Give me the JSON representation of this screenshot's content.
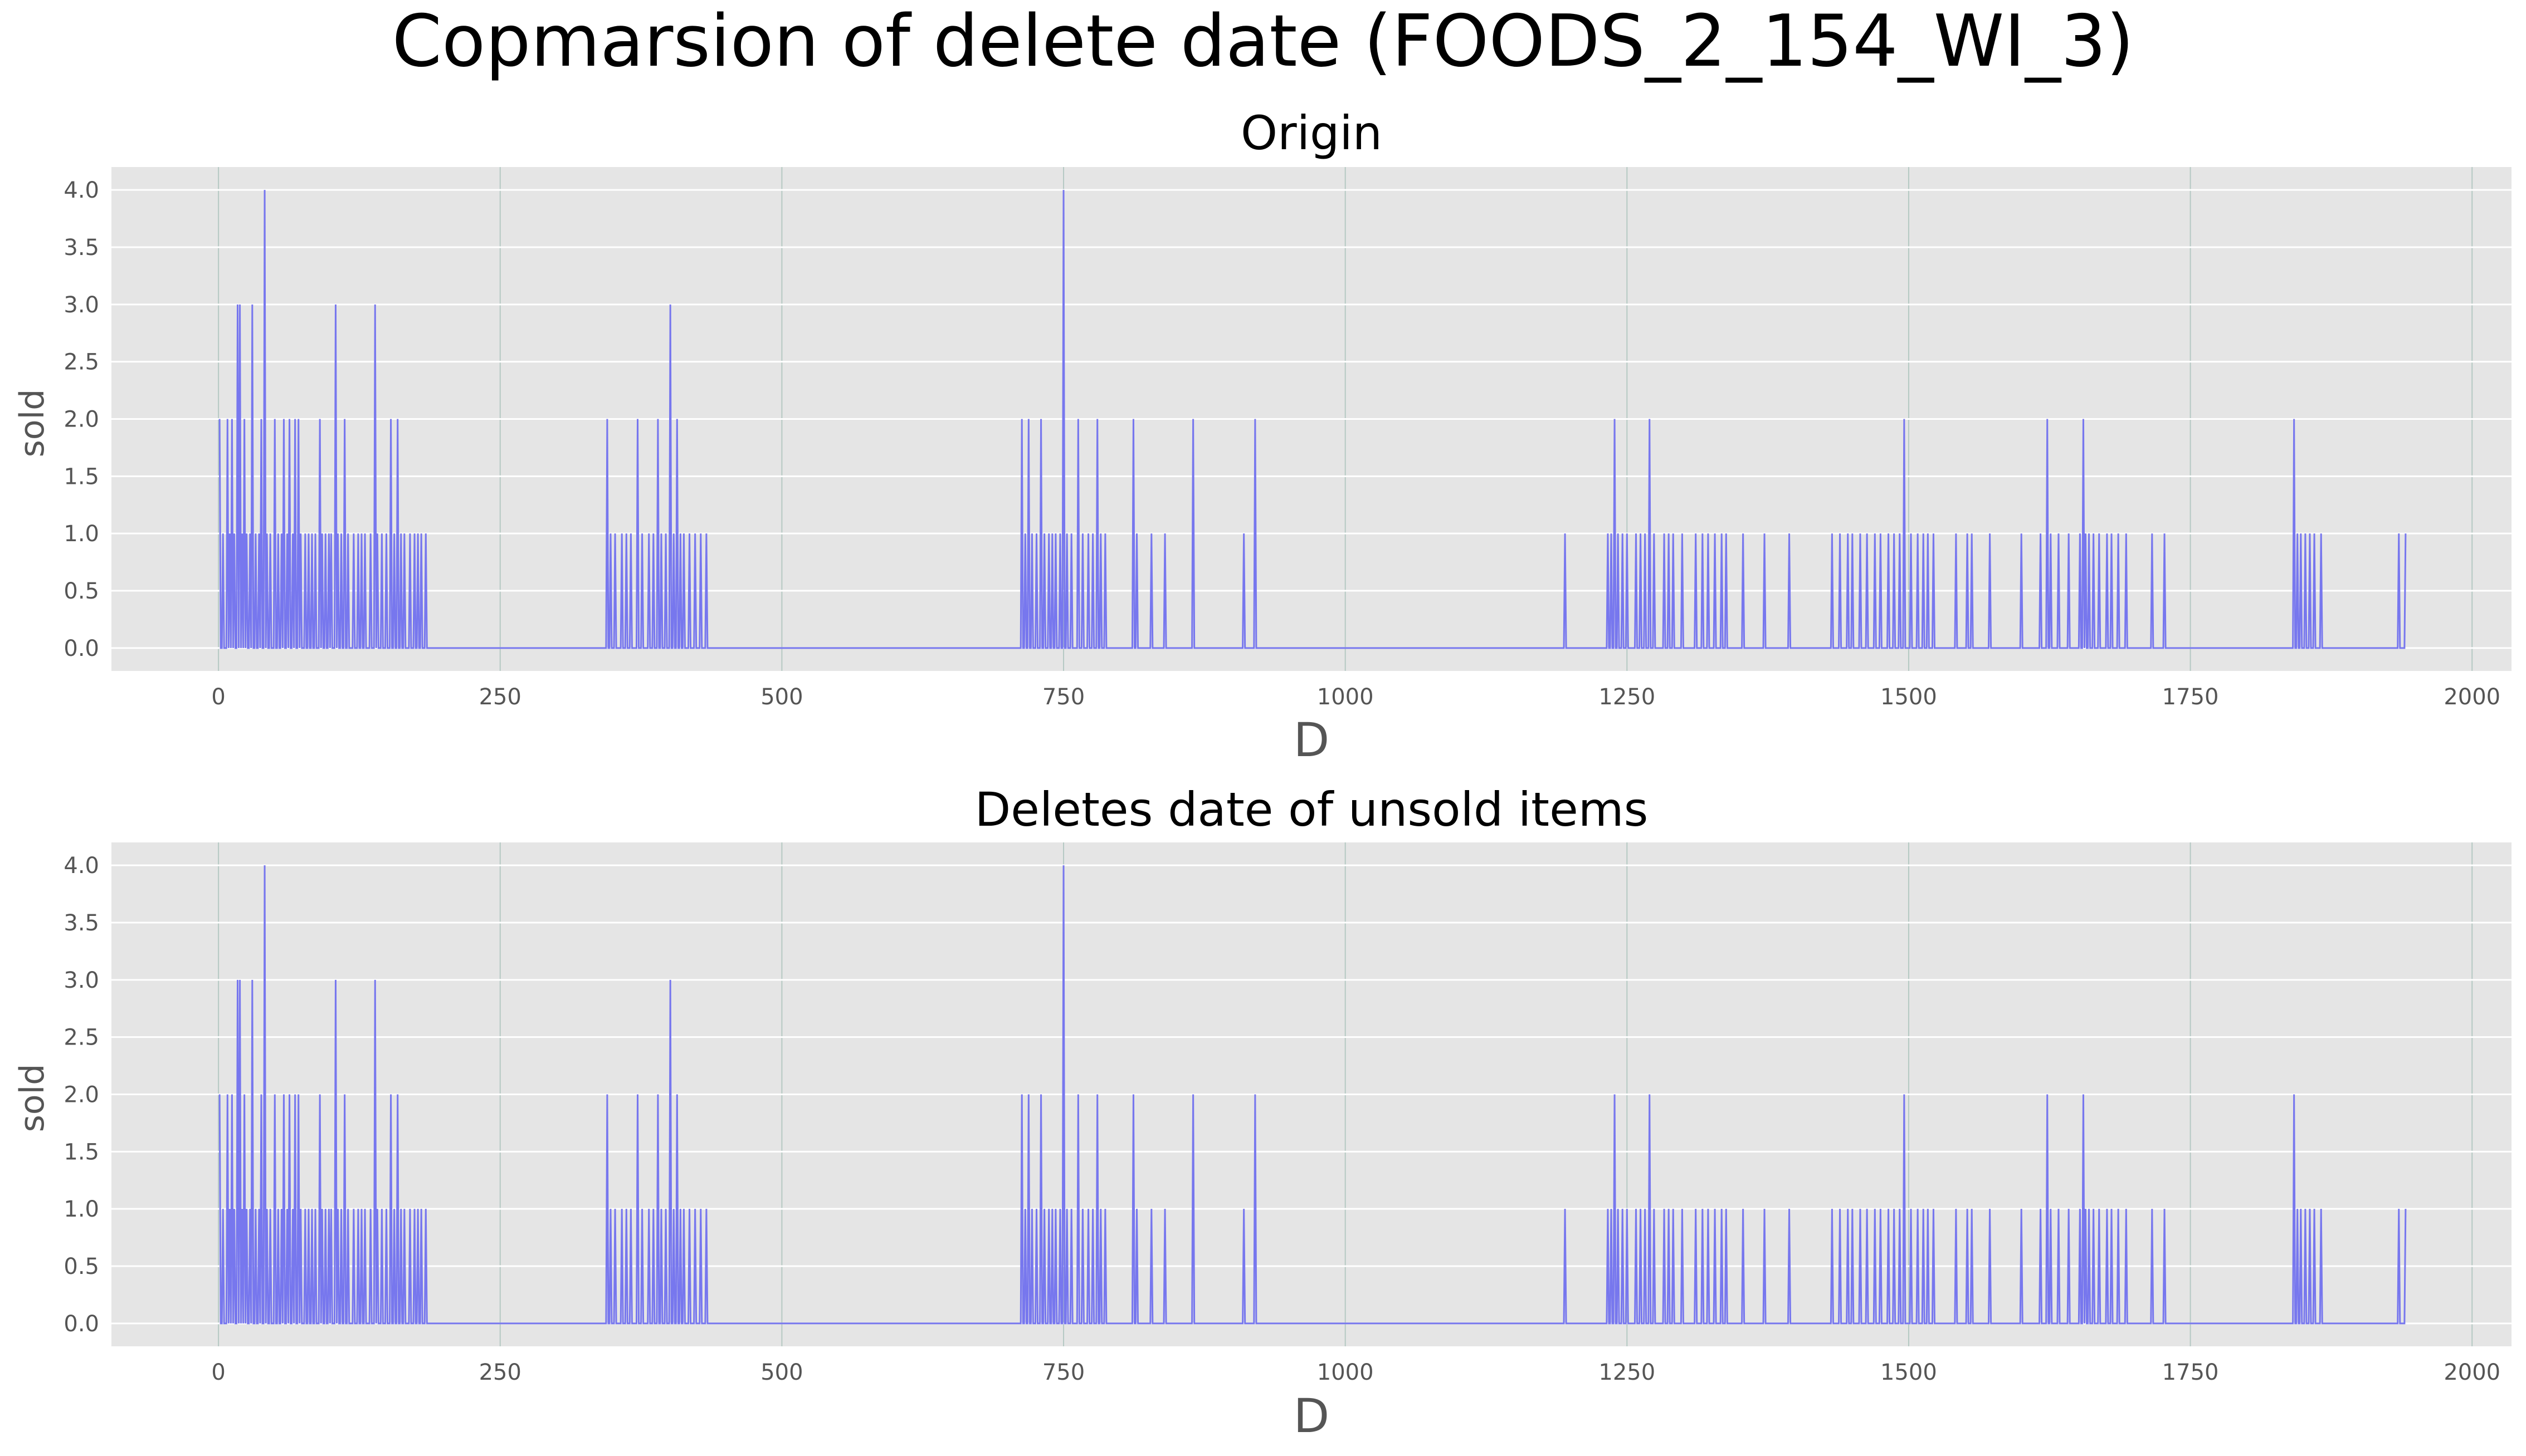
{
  "suptitle": "Copmarsion of delete date (FOODS_2_154_WI_3)",
  "colors": {
    "line": "#7777ee",
    "panel_bg": "#e5e5e5",
    "grid_h": "#ffffff",
    "grid_v": "#b5c9c3",
    "text": "#555555"
  },
  "chart_data": [
    {
      "type": "line",
      "title": "Origin",
      "xlabel": "D",
      "ylabel": "sold",
      "xlim": [
        -95,
        2035
      ],
      "ylim": [
        -0.2,
        4.2
      ],
      "xticks": [
        0,
        250,
        500,
        750,
        1000,
        1250,
        1500,
        1750,
        2000
      ],
      "xtick_labels": [
        "0",
        "250",
        "500",
        "750",
        "1000",
        "1250",
        "1500",
        "1750",
        "2000"
      ],
      "yticks": [
        0,
        0.5,
        1,
        1.5,
        2,
        2.5,
        3,
        3.5,
        4
      ],
      "ytick_labels": [
        "0.0",
        "0.5",
        "1.0",
        "1.5",
        "2.0",
        "2.5",
        "3.0",
        "3.5",
        "4.0"
      ],
      "grid": true,
      "x_start": 1,
      "x_end": 1941,
      "nonzero": [
        [
          1,
          2
        ],
        [
          4,
          1
        ],
        [
          8,
          2
        ],
        [
          10,
          1
        ],
        [
          12,
          2
        ],
        [
          14,
          1
        ],
        [
          17,
          3
        ],
        [
          19,
          3
        ],
        [
          21,
          1
        ],
        [
          23,
          2
        ],
        [
          25,
          1
        ],
        [
          28,
          1
        ],
        [
          30,
          3
        ],
        [
          33,
          1
        ],
        [
          36,
          1
        ],
        [
          38,
          2
        ],
        [
          41,
          4
        ],
        [
          43,
          1
        ],
        [
          46,
          1
        ],
        [
          50,
          2
        ],
        [
          53,
          1
        ],
        [
          56,
          1
        ],
        [
          58,
          2
        ],
        [
          61,
          1
        ],
        [
          63,
          2
        ],
        [
          66,
          1
        ],
        [
          68,
          2
        ],
        [
          71,
          2
        ],
        [
          73,
          1
        ],
        [
          77,
          1
        ],
        [
          80,
          1
        ],
        [
          83,
          1
        ],
        [
          86,
          1
        ],
        [
          90,
          2
        ],
        [
          92,
          1
        ],
        [
          95,
          1
        ],
        [
          98,
          1
        ],
        [
          100,
          1
        ],
        [
          104,
          3
        ],
        [
          106,
          1
        ],
        [
          109,
          1
        ],
        [
          112,
          2
        ],
        [
          115,
          1
        ],
        [
          120,
          1
        ],
        [
          124,
          1
        ],
        [
          127,
          1
        ],
        [
          130,
          1
        ],
        [
          135,
          1
        ],
        [
          139,
          3
        ],
        [
          141,
          1
        ],
        [
          145,
          1
        ],
        [
          149,
          1
        ],
        [
          153,
          2
        ],
        [
          156,
          1
        ],
        [
          159,
          2
        ],
        [
          162,
          1
        ],
        [
          165,
          1
        ],
        [
          170,
          1
        ],
        [
          174,
          1
        ],
        [
          177,
          1
        ],
        [
          180,
          1
        ],
        [
          184,
          1
        ],
        [
          345,
          2
        ],
        [
          348,
          1
        ],
        [
          352,
          1
        ],
        [
          358,
          1
        ],
        [
          362,
          1
        ],
        [
          366,
          1
        ],
        [
          372,
          2
        ],
        [
          376,
          1
        ],
        [
          382,
          1
        ],
        [
          386,
          1
        ],
        [
          390,
          2
        ],
        [
          393,
          1
        ],
        [
          397,
          1
        ],
        [
          401,
          3
        ],
        [
          404,
          1
        ],
        [
          407,
          2
        ],
        [
          410,
          1
        ],
        [
          413,
          1
        ],
        [
          418,
          1
        ],
        [
          423,
          1
        ],
        [
          428,
          1
        ],
        [
          433,
          1
        ],
        [
          713,
          2
        ],
        [
          716,
          1
        ],
        [
          719,
          2
        ],
        [
          722,
          1
        ],
        [
          726,
          1
        ],
        [
          730,
          2
        ],
        [
          733,
          1
        ],
        [
          737,
          1
        ],
        [
          740,
          1
        ],
        [
          743,
          1
        ],
        [
          747,
          1
        ],
        [
          750,
          4
        ],
        [
          753,
          1
        ],
        [
          757,
          1
        ],
        [
          763,
          2
        ],
        [
          767,
          1
        ],
        [
          772,
          1
        ],
        [
          776,
          1
        ],
        [
          780,
          2
        ],
        [
          783,
          1
        ],
        [
          787,
          1
        ],
        [
          812,
          2
        ],
        [
          815,
          1
        ],
        [
          828,
          1
        ],
        [
          840,
          1
        ],
        [
          865,
          2
        ],
        [
          910,
          1
        ],
        [
          920,
          2
        ],
        [
          1195,
          1
        ],
        [
          1233,
          1
        ],
        [
          1236,
          1
        ],
        [
          1239,
          2
        ],
        [
          1242,
          1
        ],
        [
          1246,
          1
        ],
        [
          1250,
          1
        ],
        [
          1258,
          1
        ],
        [
          1262,
          1
        ],
        [
          1266,
          1
        ],
        [
          1270,
          2
        ],
        [
          1274,
          1
        ],
        [
          1283,
          1
        ],
        [
          1287,
          1
        ],
        [
          1291,
          1
        ],
        [
          1299,
          1
        ],
        [
          1311,
          1
        ],
        [
          1317,
          1
        ],
        [
          1322,
          1
        ],
        [
          1328,
          1
        ],
        [
          1334,
          1
        ],
        [
          1338,
          1
        ],
        [
          1353,
          1
        ],
        [
          1372,
          1
        ],
        [
          1394,
          1
        ],
        [
          1432,
          1
        ],
        [
          1439,
          1
        ],
        [
          1446,
          1
        ],
        [
          1450,
          1
        ],
        [
          1457,
          1
        ],
        [
          1463,
          1
        ],
        [
          1470,
          1
        ],
        [
          1475,
          1
        ],
        [
          1482,
          1
        ],
        [
          1487,
          1
        ],
        [
          1492,
          1
        ],
        [
          1496,
          2
        ],
        [
          1502,
          1
        ],
        [
          1508,
          1
        ],
        [
          1513,
          1
        ],
        [
          1517,
          1
        ],
        [
          1522,
          1
        ],
        [
          1542,
          1
        ],
        [
          1552,
          1
        ],
        [
          1556,
          1
        ],
        [
          1572,
          1
        ],
        [
          1600,
          1
        ],
        [
          1617,
          1
        ],
        [
          1623,
          2
        ],
        [
          1626,
          1
        ],
        [
          1633,
          1
        ],
        [
          1642,
          1
        ],
        [
          1652,
          1
        ],
        [
          1655,
          2
        ],
        [
          1657,
          1
        ],
        [
          1660,
          1
        ],
        [
          1664,
          1
        ],
        [
          1669,
          1
        ],
        [
          1676,
          1
        ],
        [
          1680,
          1
        ],
        [
          1686,
          1
        ],
        [
          1693,
          1
        ],
        [
          1716,
          1
        ],
        [
          1727,
          1
        ],
        [
          1842,
          2
        ],
        [
          1845,
          1
        ],
        [
          1848,
          1
        ],
        [
          1852,
          1
        ],
        [
          1856,
          1
        ],
        [
          1860,
          1
        ],
        [
          1866,
          1
        ],
        [
          1935,
          1
        ],
        [
          1941,
          1
        ]
      ]
    },
    {
      "type": "line",
      "title": "Deletes date of unsold items",
      "xlabel": "D",
      "ylabel": "sold",
      "xlim": [
        -95,
        2035
      ],
      "ylim": [
        -0.2,
        4.2
      ],
      "xticks": [
        0,
        250,
        500,
        750,
        1000,
        1250,
        1500,
        1750,
        2000
      ],
      "xtick_labels": [
        "0",
        "250",
        "500",
        "750",
        "1000",
        "1250",
        "1500",
        "1750",
        "2000"
      ],
      "yticks": [
        0,
        0.5,
        1,
        1.5,
        2,
        2.5,
        3,
        3.5,
        4
      ],
      "ytick_labels": [
        "0.0",
        "0.5",
        "1.0",
        "1.5",
        "2.0",
        "2.5",
        "3.0",
        "3.5",
        "4.0"
      ],
      "grid": true,
      "x_start": 1,
      "x_end": 1941,
      "nonzero": [
        [
          1,
          2
        ],
        [
          4,
          1
        ],
        [
          8,
          2
        ],
        [
          10,
          1
        ],
        [
          12,
          2
        ],
        [
          14,
          1
        ],
        [
          17,
          3
        ],
        [
          19,
          3
        ],
        [
          21,
          1
        ],
        [
          23,
          2
        ],
        [
          25,
          1
        ],
        [
          28,
          1
        ],
        [
          30,
          3
        ],
        [
          33,
          1
        ],
        [
          36,
          1
        ],
        [
          38,
          2
        ],
        [
          41,
          4
        ],
        [
          43,
          1
        ],
        [
          46,
          1
        ],
        [
          50,
          2
        ],
        [
          53,
          1
        ],
        [
          56,
          1
        ],
        [
          58,
          2
        ],
        [
          61,
          1
        ],
        [
          63,
          2
        ],
        [
          66,
          1
        ],
        [
          68,
          2
        ],
        [
          71,
          2
        ],
        [
          73,
          1
        ],
        [
          77,
          1
        ],
        [
          80,
          1
        ],
        [
          83,
          1
        ],
        [
          86,
          1
        ],
        [
          90,
          2
        ],
        [
          92,
          1
        ],
        [
          95,
          1
        ],
        [
          98,
          1
        ],
        [
          100,
          1
        ],
        [
          104,
          3
        ],
        [
          106,
          1
        ],
        [
          109,
          1
        ],
        [
          112,
          2
        ],
        [
          115,
          1
        ],
        [
          120,
          1
        ],
        [
          124,
          1
        ],
        [
          127,
          1
        ],
        [
          130,
          1
        ],
        [
          135,
          1
        ],
        [
          139,
          3
        ],
        [
          141,
          1
        ],
        [
          145,
          1
        ],
        [
          149,
          1
        ],
        [
          153,
          2
        ],
        [
          156,
          1
        ],
        [
          159,
          2
        ],
        [
          162,
          1
        ],
        [
          165,
          1
        ],
        [
          170,
          1
        ],
        [
          174,
          1
        ],
        [
          177,
          1
        ],
        [
          180,
          1
        ],
        [
          184,
          1
        ],
        [
          345,
          2
        ],
        [
          348,
          1
        ],
        [
          352,
          1
        ],
        [
          358,
          1
        ],
        [
          362,
          1
        ],
        [
          366,
          1
        ],
        [
          372,
          2
        ],
        [
          376,
          1
        ],
        [
          382,
          1
        ],
        [
          386,
          1
        ],
        [
          390,
          2
        ],
        [
          393,
          1
        ],
        [
          397,
          1
        ],
        [
          401,
          3
        ],
        [
          404,
          1
        ],
        [
          407,
          2
        ],
        [
          410,
          1
        ],
        [
          413,
          1
        ],
        [
          418,
          1
        ],
        [
          423,
          1
        ],
        [
          428,
          1
        ],
        [
          433,
          1
        ],
        [
          713,
          2
        ],
        [
          716,
          1
        ],
        [
          719,
          2
        ],
        [
          722,
          1
        ],
        [
          726,
          1
        ],
        [
          730,
          2
        ],
        [
          733,
          1
        ],
        [
          737,
          1
        ],
        [
          740,
          1
        ],
        [
          743,
          1
        ],
        [
          747,
          1
        ],
        [
          750,
          4
        ],
        [
          753,
          1
        ],
        [
          757,
          1
        ],
        [
          763,
          2
        ],
        [
          767,
          1
        ],
        [
          772,
          1
        ],
        [
          776,
          1
        ],
        [
          780,
          2
        ],
        [
          783,
          1
        ],
        [
          787,
          1
        ],
        [
          812,
          2
        ],
        [
          815,
          1
        ],
        [
          828,
          1
        ],
        [
          840,
          1
        ],
        [
          865,
          2
        ],
        [
          910,
          1
        ],
        [
          920,
          2
        ],
        [
          1195,
          1
        ],
        [
          1233,
          1
        ],
        [
          1236,
          1
        ],
        [
          1239,
          2
        ],
        [
          1242,
          1
        ],
        [
          1246,
          1
        ],
        [
          1250,
          1
        ],
        [
          1258,
          1
        ],
        [
          1262,
          1
        ],
        [
          1266,
          1
        ],
        [
          1270,
          2
        ],
        [
          1274,
          1
        ],
        [
          1283,
          1
        ],
        [
          1287,
          1
        ],
        [
          1291,
          1
        ],
        [
          1299,
          1
        ],
        [
          1311,
          1
        ],
        [
          1317,
          1
        ],
        [
          1322,
          1
        ],
        [
          1328,
          1
        ],
        [
          1334,
          1
        ],
        [
          1338,
          1
        ],
        [
          1353,
          1
        ],
        [
          1372,
          1
        ],
        [
          1394,
          1
        ],
        [
          1432,
          1
        ],
        [
          1439,
          1
        ],
        [
          1446,
          1
        ],
        [
          1450,
          1
        ],
        [
          1457,
          1
        ],
        [
          1463,
          1
        ],
        [
          1470,
          1
        ],
        [
          1475,
          1
        ],
        [
          1482,
          1
        ],
        [
          1487,
          1
        ],
        [
          1492,
          1
        ],
        [
          1496,
          2
        ],
        [
          1502,
          1
        ],
        [
          1508,
          1
        ],
        [
          1513,
          1
        ],
        [
          1517,
          1
        ],
        [
          1522,
          1
        ],
        [
          1542,
          1
        ],
        [
          1552,
          1
        ],
        [
          1556,
          1
        ],
        [
          1572,
          1
        ],
        [
          1600,
          1
        ],
        [
          1617,
          1
        ],
        [
          1623,
          2
        ],
        [
          1626,
          1
        ],
        [
          1633,
          1
        ],
        [
          1642,
          1
        ],
        [
          1652,
          1
        ],
        [
          1655,
          2
        ],
        [
          1657,
          1
        ],
        [
          1660,
          1
        ],
        [
          1664,
          1
        ],
        [
          1669,
          1
        ],
        [
          1676,
          1
        ],
        [
          1680,
          1
        ],
        [
          1686,
          1
        ],
        [
          1693,
          1
        ],
        [
          1716,
          1
        ],
        [
          1727,
          1
        ],
        [
          1842,
          2
        ],
        [
          1845,
          1
        ],
        [
          1848,
          1
        ],
        [
          1852,
          1
        ],
        [
          1856,
          1
        ],
        [
          1860,
          1
        ],
        [
          1866,
          1
        ],
        [
          1935,
          1
        ],
        [
          1941,
          1
        ]
      ]
    }
  ]
}
